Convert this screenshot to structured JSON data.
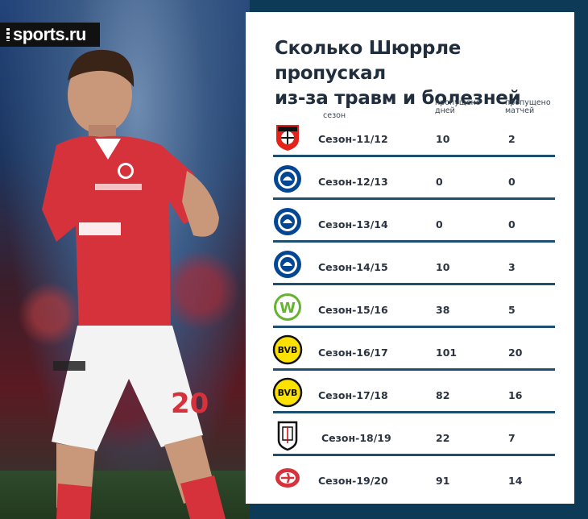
{
  "brand": {
    "logo_text": "sports.ru"
  },
  "title": {
    "line1": "Сколько Шюррле пропускал",
    "line2": "из-за травм и болезней"
  },
  "columns": {
    "season": "сезон",
    "days_line1": "пропущено",
    "days_line2": "дней",
    "matches_line1": "пропущено",
    "matches_line2": "матчей"
  },
  "rows": [
    {
      "season": "Сезон-11/12",
      "days": "10",
      "matches": "2",
      "club_icon": "bayer-leverkusen-crest"
    },
    {
      "season": "Сезон-12/13",
      "days": "0",
      "matches": "0",
      "club_icon": "chelsea-crest"
    },
    {
      "season": "Сезон-13/14",
      "days": "0",
      "matches": "0",
      "club_icon": "chelsea-crest"
    },
    {
      "season": "Сезон-14/15",
      "days": "10",
      "matches": "3",
      "club_icon": "chelsea-crest"
    },
    {
      "season": "Сезон-15/16",
      "days": "38",
      "matches": "5",
      "club_icon": "wolfsburg-crest"
    },
    {
      "season": "Сезон-16/17",
      "days": "101",
      "matches": "20",
      "club_icon": "borussia-dortmund-crest"
    },
    {
      "season": "Сезон-17/18",
      "days": "82",
      "matches": "16",
      "club_icon": "borussia-dortmund-crest"
    },
    {
      "season": "Сезон-18/19",
      "days": "22",
      "matches": "7",
      "club_icon": "fulham-crest"
    },
    {
      "season": "Сезон-19/20",
      "days": "91",
      "matches": "14",
      "club_icon": "spartak-moscow-crest"
    }
  ],
  "colors": {
    "divider": "#1d4f6e",
    "text": "#2b3440",
    "background": "#0d3b57"
  }
}
